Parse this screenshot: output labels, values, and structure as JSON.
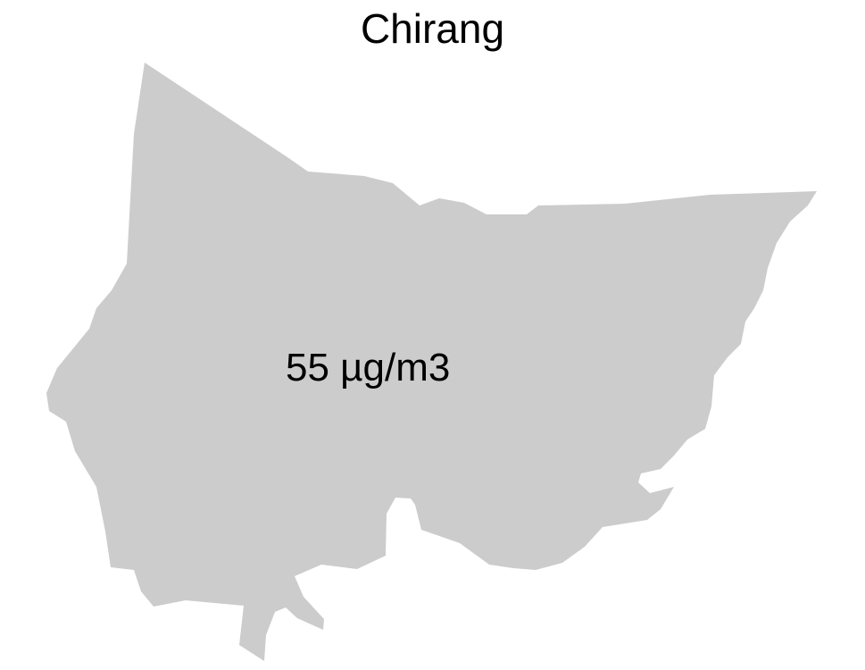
{
  "map": {
    "title": "Chirang",
    "value_label": "55 µg/m3",
    "fill_color": "#cccccc",
    "background_color": "#ffffff"
  }
}
